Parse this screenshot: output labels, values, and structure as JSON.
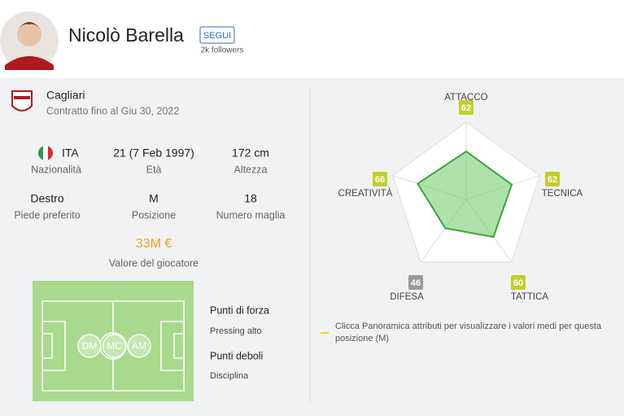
{
  "header": {
    "name": "Nicolò Barella",
    "follow_button": "SEGUI",
    "followers": "2k followers"
  },
  "club": {
    "name": "Cagliari",
    "contract": "Contratto fino al Giu 30, 2022"
  },
  "info": [
    {
      "value": "ITA",
      "label": "Nazionalità"
    },
    {
      "value": "21 (7 Feb 1997)",
      "label": "Età"
    },
    {
      "value": "172 cm",
      "label": "Altezza"
    },
    {
      "value": "Destro",
      "label": "Piede preferito"
    },
    {
      "value": "M",
      "label": "Posizione"
    },
    {
      "value": "18",
      "label": "Numero maglia"
    }
  ],
  "market_value": {
    "value": "33M €",
    "label": "Valore del giocatore"
  },
  "positions": [
    "DM",
    "MC",
    "AM"
  ],
  "strengths": {
    "title": "Punti di forza",
    "items": [
      "Pressing alto"
    ]
  },
  "weaknesses": {
    "title": "Punti deboli",
    "items": [
      "Disciplina"
    ]
  },
  "radar": {
    "type": "radar",
    "rlim": [
      0,
      100
    ],
    "attributes": [
      {
        "name": "ATTACCO",
        "value": 62,
        "color": "#c3cf2a"
      },
      {
        "name": "TECNICA",
        "value": 62,
        "color": "#c3cf2a"
      },
      {
        "name": "TATTICA",
        "value": 60,
        "color": "#c3cf2a"
      },
      {
        "name": "DIFESA",
        "value": 46,
        "color": "#9b9b9b"
      },
      {
        "name": "CREATIVITÀ",
        "value": 66,
        "color": "#c3cf2a"
      }
    ],
    "note": "Clicca Panoramica attributi per visualizzare i valori medi per questa posizione (M)"
  }
}
